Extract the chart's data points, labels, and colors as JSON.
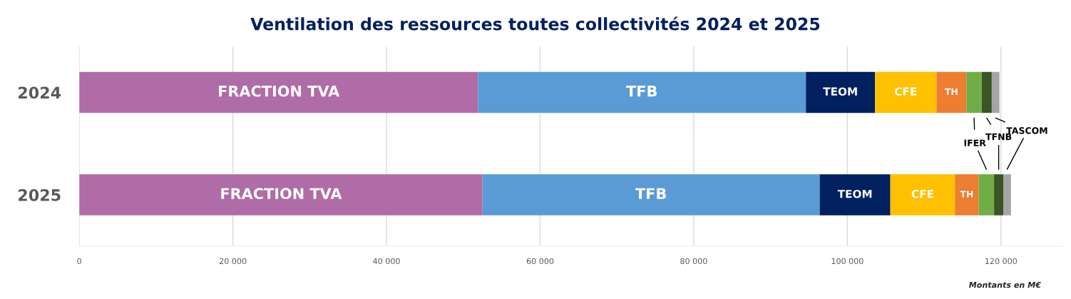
{
  "chart_data": {
    "type": "bar",
    "orientation": "horizontal",
    "stacked": true,
    "title": "Ventilation des ressources toutes collectivités 2024 et 2025",
    "categories": [
      "2024",
      "2025"
    ],
    "series": [
      {
        "name": "FRACTION TVA",
        "color": "#b06ca6",
        "values": [
          51900,
          52500
        ]
      },
      {
        "name": "TFB",
        "color": "#5b9bd5",
        "values": [
          42700,
          43900
        ]
      },
      {
        "name": "TEOM",
        "color": "#002060",
        "values": [
          9000,
          9200
        ]
      },
      {
        "name": "CFE",
        "color": "#ffc000",
        "values": [
          8000,
          8400
        ]
      },
      {
        "name": "TH",
        "color": "#ed7d31",
        "values": [
          3900,
          3100
        ]
      },
      {
        "name": "IFER",
        "color": "#70ad47",
        "values": [
          2000,
          2000
        ]
      },
      {
        "name": "TFNB",
        "color": "#375623",
        "values": [
          1300,
          1200
        ]
      },
      {
        "name": "TASCOM",
        "color": "#a5a5a5",
        "values": [
          1000,
          1000
        ]
      }
    ],
    "xlim": [
      0,
      128000
    ],
    "xticks": [
      {
        "value": 0,
        "label": "0"
      },
      {
        "value": 20000,
        "label": "20 000"
      },
      {
        "value": 40000,
        "label": "40 000"
      },
      {
        "value": 60000,
        "label": "60 000"
      },
      {
        "value": 80000,
        "label": "80 000"
      },
      {
        "value": 100000,
        "label": "100 000"
      },
      {
        "value": 120000,
        "label": "120 000"
      }
    ],
    "grid": "x",
    "annotations": [
      "Montants en M€"
    ]
  }
}
